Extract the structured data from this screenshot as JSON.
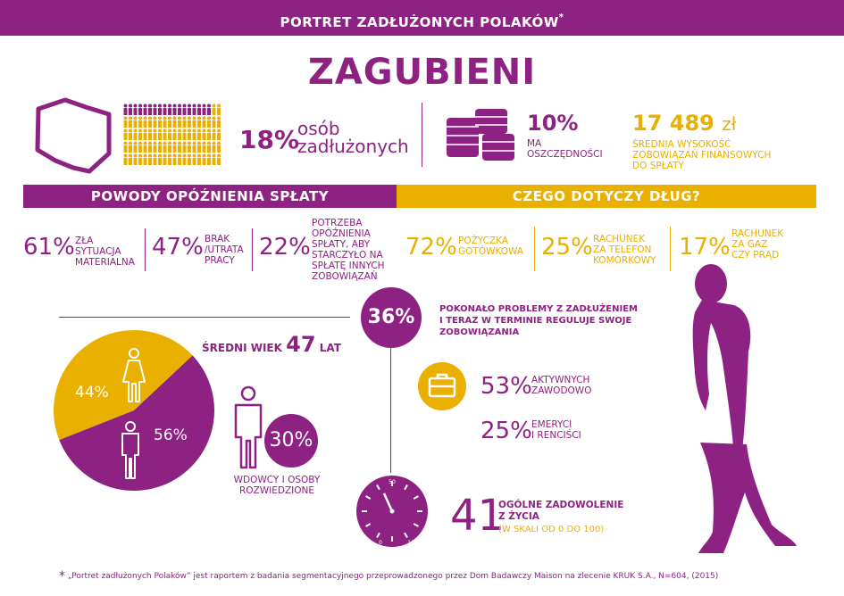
{
  "header": {
    "title": "PORTRET ZADŁUŻONYCH POLAKÓW",
    "asterisk": "*"
  },
  "main_title": "ZAGUBIENI",
  "stats": {
    "indebted_pct": "18%",
    "indebted_label_1": "osób",
    "indebted_label_2": "zadłużonych",
    "savings_pct": "10%",
    "savings_label_1": "MA",
    "savings_label_2": "OSZCZĘDNOŚCI",
    "avg_debt_value": "17 489",
    "avg_debt_unit": "zł",
    "avg_debt_label_1": "ŚREDNIA WYSOKOŚĆ",
    "avg_debt_label_2": "ZOBOWIĄZAŃ FINANSOWYCH",
    "avg_debt_label_3": "DO SPŁATY"
  },
  "reasons": {
    "title": "POWODY OPÓŹNIENIA SPŁATY",
    "items": [
      {
        "value": "61%",
        "lines": [
          "ZŁA",
          "SYTUACJA",
          "MATERIALNA"
        ]
      },
      {
        "value": "47%",
        "lines": [
          "BRAK",
          "/UTRATA",
          "PRACY"
        ]
      },
      {
        "value": "22%",
        "lines": [
          "POTRZEBA",
          "OPÓŹNIENIA",
          "SPŁATY, ABY",
          "STARCZYŁO NA",
          "SPŁATĘ INNYCH",
          "ZOBOWIĄZAŃ"
        ]
      }
    ]
  },
  "debt_types": {
    "title": "CZEGO DOTYCZY DŁUG?",
    "items": [
      {
        "value": "72%",
        "lines": [
          "POŻYCZKA",
          "GOTÓWKOWA"
        ]
      },
      {
        "value": "25%",
        "lines": [
          "RACHUNEK",
          "ZA TELEFON",
          "KOMÓRKOWY"
        ]
      },
      {
        "value": "17%",
        "lines": [
          "RACHUNEK",
          "ZA GAZ",
          "CZY PRĄD"
        ]
      }
    ]
  },
  "recovered": {
    "value": "36%",
    "lines": [
      "POKONAŁO PROBLEMY Z ZADŁUŻENIEM",
      "I TERAZ W TERMINIE REGULUJE SWOJE",
      "ZOBOWIĄZANIA"
    ]
  },
  "age": {
    "label": "ŚREDNI WIEK",
    "value": "47",
    "unit": "LAT"
  },
  "chart_data": {
    "type": "pie",
    "categories": [
      "kobiety",
      "mężczyźni"
    ],
    "values": [
      44,
      56
    ],
    "labels": [
      "44%",
      "56%"
    ],
    "colors": [
      "#e9b000",
      "#8e2282"
    ]
  },
  "widowed": {
    "value": "30%",
    "line_1": "WDOWCY I OSOBY",
    "line_2": "ROZWIEDZIONE"
  },
  "employment": [
    {
      "value": "53%",
      "lines": [
        "AKTYWNYCH",
        "ZAWODOWO"
      ]
    },
    {
      "value": "25%",
      "lines": [
        "EMERYCI",
        "I RENCIŚCI"
      ]
    }
  ],
  "satisfaction": {
    "value": "41",
    "line_1": "OGÓLNE ZADOWOLENIE",
    "line_2": "Z ŻYCIA",
    "scale": "(W SKALI OD 0 DO 100)",
    "gauge": {
      "min": "0",
      "mid": "50",
      "max": "100",
      "level": 41
    }
  },
  "footnote": {
    "star": "*",
    "text": "„Portret zadłużonych Polaków” jest raportem z badania segmentacyjnego przeprowadzonego przez Dom Badawczy Maison na zlecenie KRUK S.A., N=604, (2015)"
  },
  "colors": {
    "purple": "#8e2282",
    "gold": "#e9b000"
  },
  "icons": [
    "poland-map-icon",
    "people-grid-icon",
    "coins-icon",
    "briefcase-icon",
    "woman-icon",
    "man-icon",
    "clock-gauge-icon",
    "walking-man-icon"
  ]
}
